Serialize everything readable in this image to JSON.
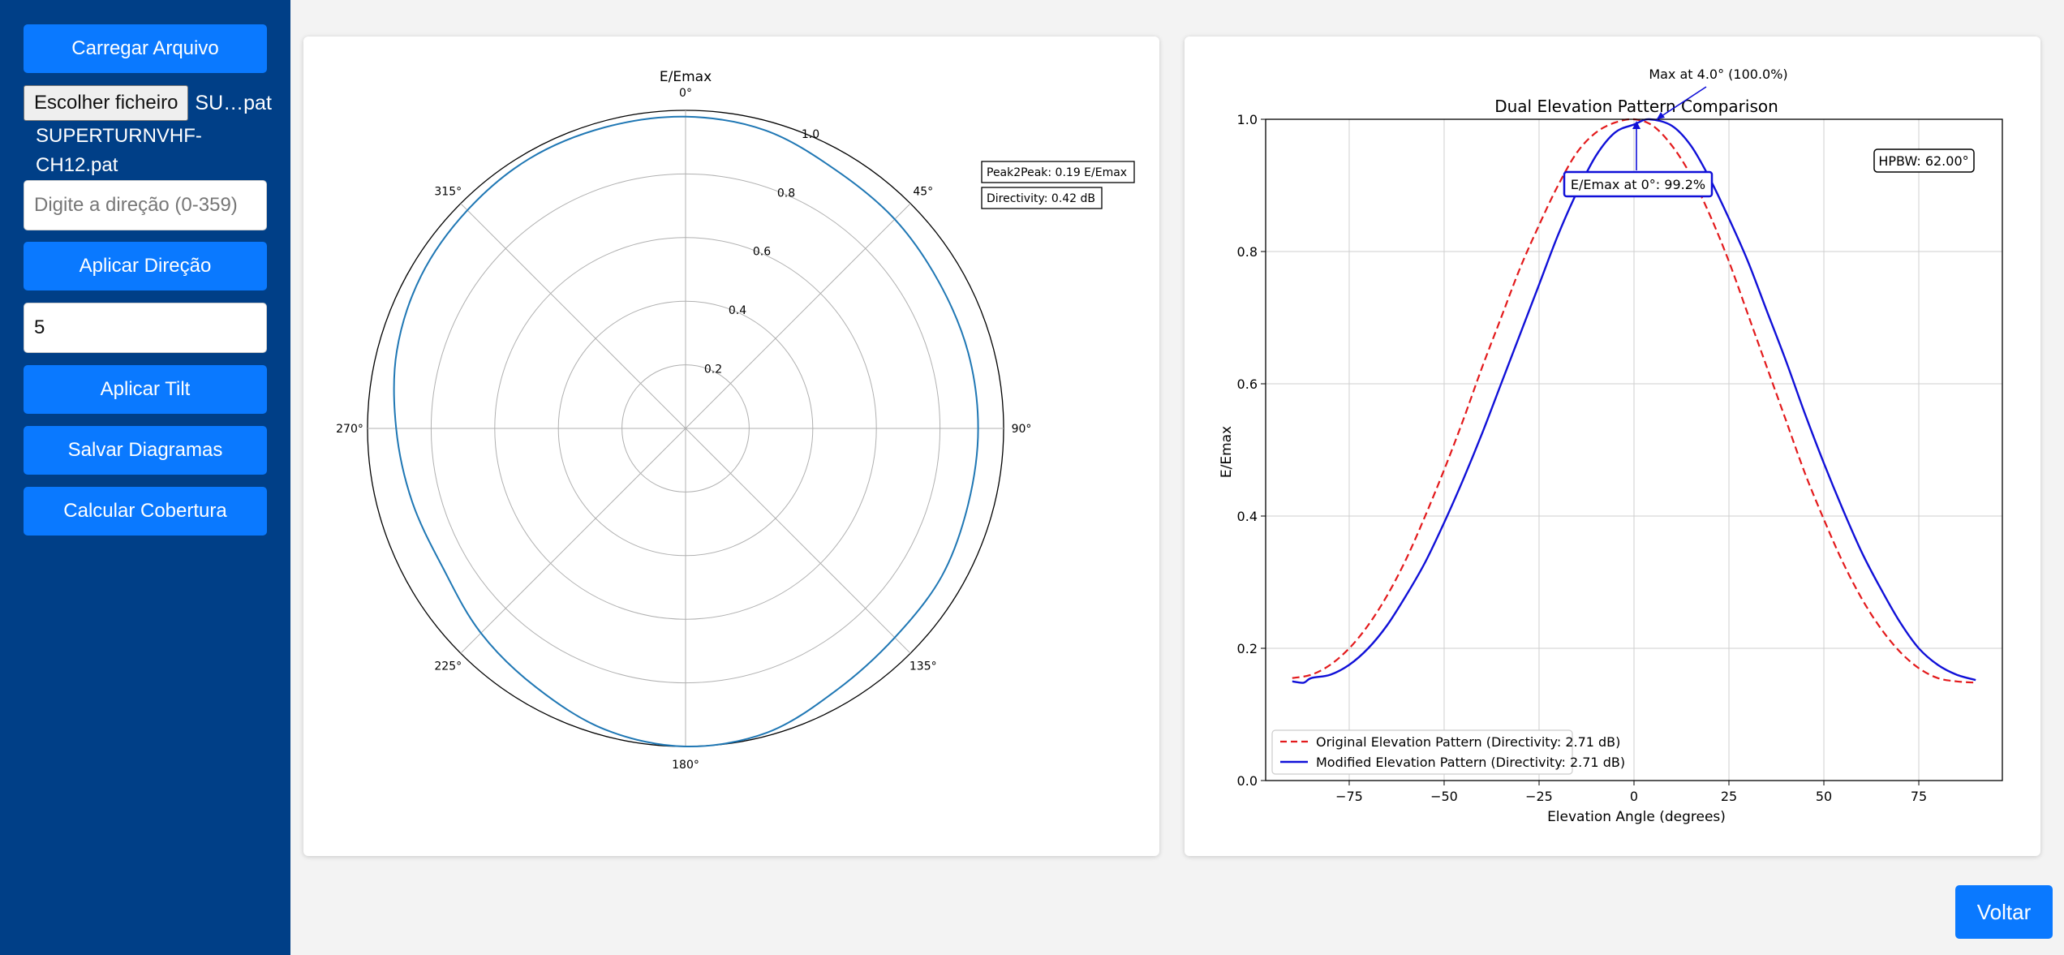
{
  "sidebar": {
    "load_button": "Carregar Arquivo",
    "file_button": "Escolher ficheiro",
    "file_short": "SU…pat",
    "file_name": "SUPERTURNVHF-CH12.pat",
    "direction_placeholder": "Digite a direção (0-359)",
    "direction_value": "",
    "apply_direction_button": "Aplicar Direção",
    "tilt_value": "5",
    "apply_tilt_button": "Aplicar Tilt",
    "save_button": "Salvar Diagramas",
    "coverage_button": "Calcular Cobertura"
  },
  "back_button": "Voltar",
  "colors": {
    "sidebar": "#003f87",
    "button": "#0a79ff",
    "polar_line": "#1f77b4",
    "original": "#e31a1c",
    "modified": "#1010d8"
  },
  "chart_data": [
    {
      "type": "polar",
      "title": "E/Emax",
      "angle_ticks": [
        "0°",
        "45°",
        "90°",
        "135°",
        "180°",
        "225°",
        "270°",
        "315°"
      ],
      "radial_ticks": [
        "0.2",
        "0.4",
        "0.6",
        "0.8",
        "1.0"
      ],
      "rlim": [
        0,
        1
      ],
      "direction": "clockwise, 0° at top",
      "annotations": [
        "Peak2Peak: 0.19 E/Emax",
        "Directivity: 0.42 dB"
      ],
      "series": [
        {
          "angles": [
            0,
            15,
            30,
            45,
            60,
            75,
            90,
            105,
            120,
            135,
            150,
            165,
            180,
            195,
            210,
            225,
            240,
            255,
            270,
            285,
            300,
            315,
            330,
            345
          ],
          "values": [
            0.98,
            0.97,
            0.94,
            0.93,
            0.92,
            0.92,
            0.92,
            0.92,
            0.93,
            0.93,
            0.95,
            0.99,
            1.0,
            0.98,
            0.94,
            0.91,
            0.88,
            0.89,
            0.91,
            0.94,
            0.96,
            0.97,
            0.98,
            0.98
          ]
        }
      ]
    },
    {
      "type": "line",
      "title": "Dual Elevation Pattern Comparison",
      "xlabel": "Elevation Angle (degrees)",
      "ylabel": "E/Emax",
      "xlim": [
        -97,
        97
      ],
      "ylim": [
        0,
        1
      ],
      "xticks": [
        "−75",
        "−50",
        "−25",
        "0",
        "25",
        "50",
        "75"
      ],
      "yticks": [
        "0.0",
        "0.2",
        "0.4",
        "0.6",
        "0.8",
        "1.0"
      ],
      "grid": true,
      "legend": "lower-left",
      "annotations": {
        "max": "Max at 4.0° (100.0%)",
        "at_zero": "E/Emax at 0°: 99.2%",
        "hpbw": "HPBW: 62.00°"
      },
      "series": [
        {
          "name": "Original Elevation Pattern (Directivity: 2.71 dB)",
          "style": "dashed",
          "x": [
            -90,
            -85,
            -80,
            -75,
            -70,
            -65,
            -60,
            -55,
            -50,
            -45,
            -40,
            -35,
            -30,
            -25,
            -20,
            -15,
            -10,
            -5,
            0,
            5,
            10,
            15,
            20,
            25,
            30,
            35,
            40,
            45,
            50,
            55,
            60,
            65,
            70,
            75,
            80,
            85,
            90
          ],
          "y": [
            0.155,
            0.16,
            0.175,
            0.2,
            0.235,
            0.28,
            0.335,
            0.4,
            0.47,
            0.545,
            0.625,
            0.7,
            0.775,
            0.84,
            0.9,
            0.95,
            0.98,
            0.995,
            1.0,
            0.99,
            0.96,
            0.915,
            0.855,
            0.785,
            0.705,
            0.625,
            0.545,
            0.465,
            0.395,
            0.33,
            0.275,
            0.23,
            0.195,
            0.17,
            0.155,
            0.15,
            0.148
          ]
        },
        {
          "name": "Modified Elevation Pattern (Directivity: 2.71 dB)",
          "style": "solid",
          "x": [
            -90,
            -87,
            -85,
            -80,
            -75,
            -70,
            -65,
            -60,
            -55,
            -50,
            -45,
            -40,
            -35,
            -30,
            -25,
            -20,
            -15,
            -10,
            -5,
            0,
            4,
            10,
            15,
            20,
            25,
            30,
            35,
            40,
            45,
            50,
            55,
            60,
            65,
            70,
            75,
            80,
            85,
            90
          ],
          "y": [
            0.15,
            0.148,
            0.155,
            0.16,
            0.175,
            0.2,
            0.235,
            0.28,
            0.33,
            0.39,
            0.455,
            0.525,
            0.6,
            0.675,
            0.75,
            0.825,
            0.89,
            0.945,
            0.98,
            0.992,
            1.0,
            0.99,
            0.96,
            0.91,
            0.85,
            0.785,
            0.71,
            0.635,
            0.555,
            0.48,
            0.41,
            0.345,
            0.29,
            0.24,
            0.2,
            0.175,
            0.16,
            0.152
          ]
        }
      ]
    }
  ]
}
